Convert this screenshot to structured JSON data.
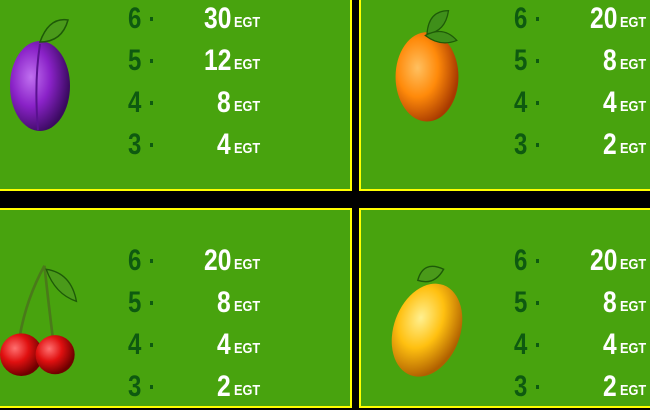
{
  "colors": {
    "background": "#48a30e",
    "border": "#ffff00",
    "count_text": "#0e5a10",
    "value_text": "#ffffff"
  },
  "panels": [
    {
      "symbol": "plum",
      "rows": [
        {
          "count": "6",
          "value": "30",
          "currency": "EGT"
        },
        {
          "count": "5",
          "value": "12",
          "currency": "EGT"
        },
        {
          "count": "4",
          "value": "8",
          "currency": "EGT"
        },
        {
          "count": "3",
          "value": "4",
          "currency": "EGT"
        }
      ]
    },
    {
      "symbol": "orange",
      "rows": [
        {
          "count": "6",
          "value": "20",
          "currency": "EGT"
        },
        {
          "count": "5",
          "value": "8",
          "currency": "EGT"
        },
        {
          "count": "4",
          "value": "4",
          "currency": "EGT"
        },
        {
          "count": "3",
          "value": "2",
          "currency": "EGT"
        }
      ]
    },
    {
      "symbol": "cherry",
      "rows": [
        {
          "count": "6",
          "value": "20",
          "currency": "EGT"
        },
        {
          "count": "5",
          "value": "8",
          "currency": "EGT"
        },
        {
          "count": "4",
          "value": "4",
          "currency": "EGT"
        },
        {
          "count": "3",
          "value": "2",
          "currency": "EGT"
        }
      ]
    },
    {
      "symbol": "lemon",
      "rows": [
        {
          "count": "6",
          "value": "20",
          "currency": "EGT"
        },
        {
          "count": "5",
          "value": "8",
          "currency": "EGT"
        },
        {
          "count": "4",
          "value": "4",
          "currency": "EGT"
        },
        {
          "count": "3",
          "value": "2",
          "currency": "EGT"
        }
      ]
    }
  ]
}
